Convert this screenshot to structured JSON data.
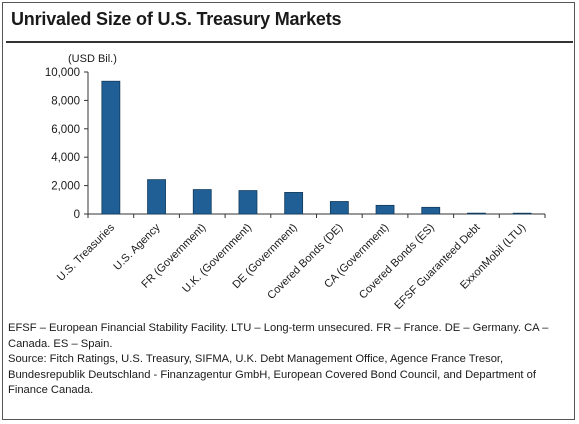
{
  "title": "Unrivaled Size of U.S. Treasury Markets",
  "chart_data": {
    "type": "bar",
    "unit_label": "(USD Bil.)",
    "categories": [
      "U.S. Treasuries",
      "U.S. Agency",
      "FR (Government)",
      "U.K. (Government)",
      "DE (Government)",
      "Covered Bonds (DE)",
      "CA (Government)",
      "Covered Bonds (ES)",
      "EFSF Guaranteed Debt",
      "ExxonMobil (LTU)"
    ],
    "values": [
      9350,
      2420,
      1720,
      1650,
      1520,
      880,
      610,
      470,
      60,
      10
    ],
    "ylim": [
      0,
      10000
    ],
    "yticks": [
      "0",
      "2,000",
      "4,000",
      "6,000",
      "8,000",
      "10,000"
    ],
    "ytick_values": [
      0,
      2000,
      4000,
      6000,
      8000,
      10000
    ],
    "grid": false,
    "bar_color": "#1f5f95"
  },
  "notes": {
    "line1": "EFSF – European Financial Stability Facility. LTU – Long-term unsecured. FR – France. DE – Germany. CA – Canada. ES – Spain.",
    "line2": "Source: Fitch Ratings, U.S. Treasury, SIFMA, U.K. Debt Management Office, Agence France Tresor, Bundesrepublik Deutschland - Finanzagentur GmbH, European Covered Bond Council, and Department of Finance Canada."
  }
}
